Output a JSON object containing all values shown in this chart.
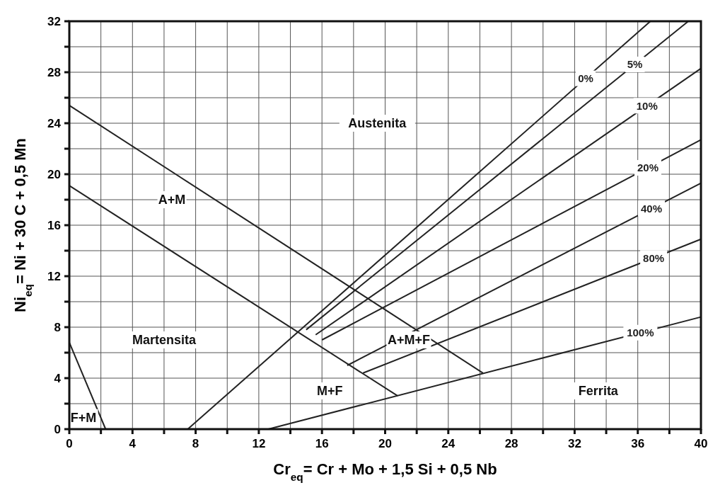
{
  "chart_data": {
    "type": "line",
    "xlabel": "Cr$_{eq}$= Cr + Mo + 1,5 Si + 0,5 Nb",
    "ylabel": "Ni$_{eq}$= Ni + 30 C + 0,5 Mn",
    "xlim": [
      0,
      40
    ],
    "ylim": [
      0,
      32
    ],
    "xticks": [
      0,
      {
        "value": 2,
        "label": null
      },
      4,
      {
        "value": 6,
        "label": null
      },
      8,
      {
        "value": 10,
        "label": null
      },
      12,
      {
        "value": 14,
        "label": null
      },
      16,
      {
        "value": 18,
        "label": null
      },
      20,
      {
        "value": 22,
        "label": null
      },
      24,
      {
        "value": 26,
        "label": null
      },
      28,
      {
        "value": 30,
        "label": null
      },
      32,
      {
        "value": 34,
        "label": null
      },
      36,
      {
        "value": 38,
        "label": null
      },
      40
    ],
    "yticks": [
      0,
      {
        "value": 2,
        "label": null
      },
      4,
      {
        "value": 6,
        "label": null
      },
      8,
      {
        "value": 10,
        "label": null
      },
      12,
      {
        "value": 14,
        "label": null
      },
      16,
      {
        "value": 18,
        "label": null
      },
      20,
      {
        "value": 22,
        "label": null
      },
      24,
      {
        "value": 26,
        "label": null
      },
      28,
      {
        "value": 30,
        "label": null
      },
      32
    ],
    "grid": true,
    "marker": "none",
    "line_style": "solid",
    "series": [
      {
        "color": "#222222",
        "x": [
          0,
          2.3
        ],
        "values": [
          6.8,
          0
        ]
      },
      {
        "color": "#222222",
        "x": [
          0,
          26.2
        ],
        "values": [
          25.4,
          4.4
        ]
      },
      {
        "color": "#222222",
        "x": [
          0,
          20.8
        ],
        "values": [
          19.1,
          2.6
        ]
      },
      {
        "name": "0%",
        "color": "#222222",
        "x": [
          7.5,
          36.8
        ],
        "values": [
          0,
          32
        ]
      },
      {
        "name": "5%",
        "color": "#222222",
        "x": [
          15,
          39.2
        ],
        "values": [
          7.8,
          32
        ]
      },
      {
        "name": "10%",
        "color": "#222222",
        "x": [
          15.6,
          40
        ],
        "values": [
          7.4,
          28.3
        ]
      },
      {
        "name": "20%",
        "color": "#222222",
        "x": [
          16,
          40
        ],
        "values": [
          7,
          22.7
        ]
      },
      {
        "name": "40%",
        "color": "#222222",
        "x": [
          17.6,
          40
        ],
        "values": [
          5,
          19.3
        ]
      },
      {
        "name": "80%",
        "color": "#222222",
        "x": [
          18.6,
          40
        ],
        "values": [
          4.4,
          14.9
        ]
      },
      {
        "name": "100%",
        "color": "#222222",
        "x": [
          12.6,
          40
        ],
        "values": [
          0,
          8.8
        ]
      }
    ],
    "annotations": [
      "Austenita",
      "A+M",
      "Martensita",
      "M+F",
      "A+M+F",
      "Ferrita",
      "F+M"
    ]
  }
}
